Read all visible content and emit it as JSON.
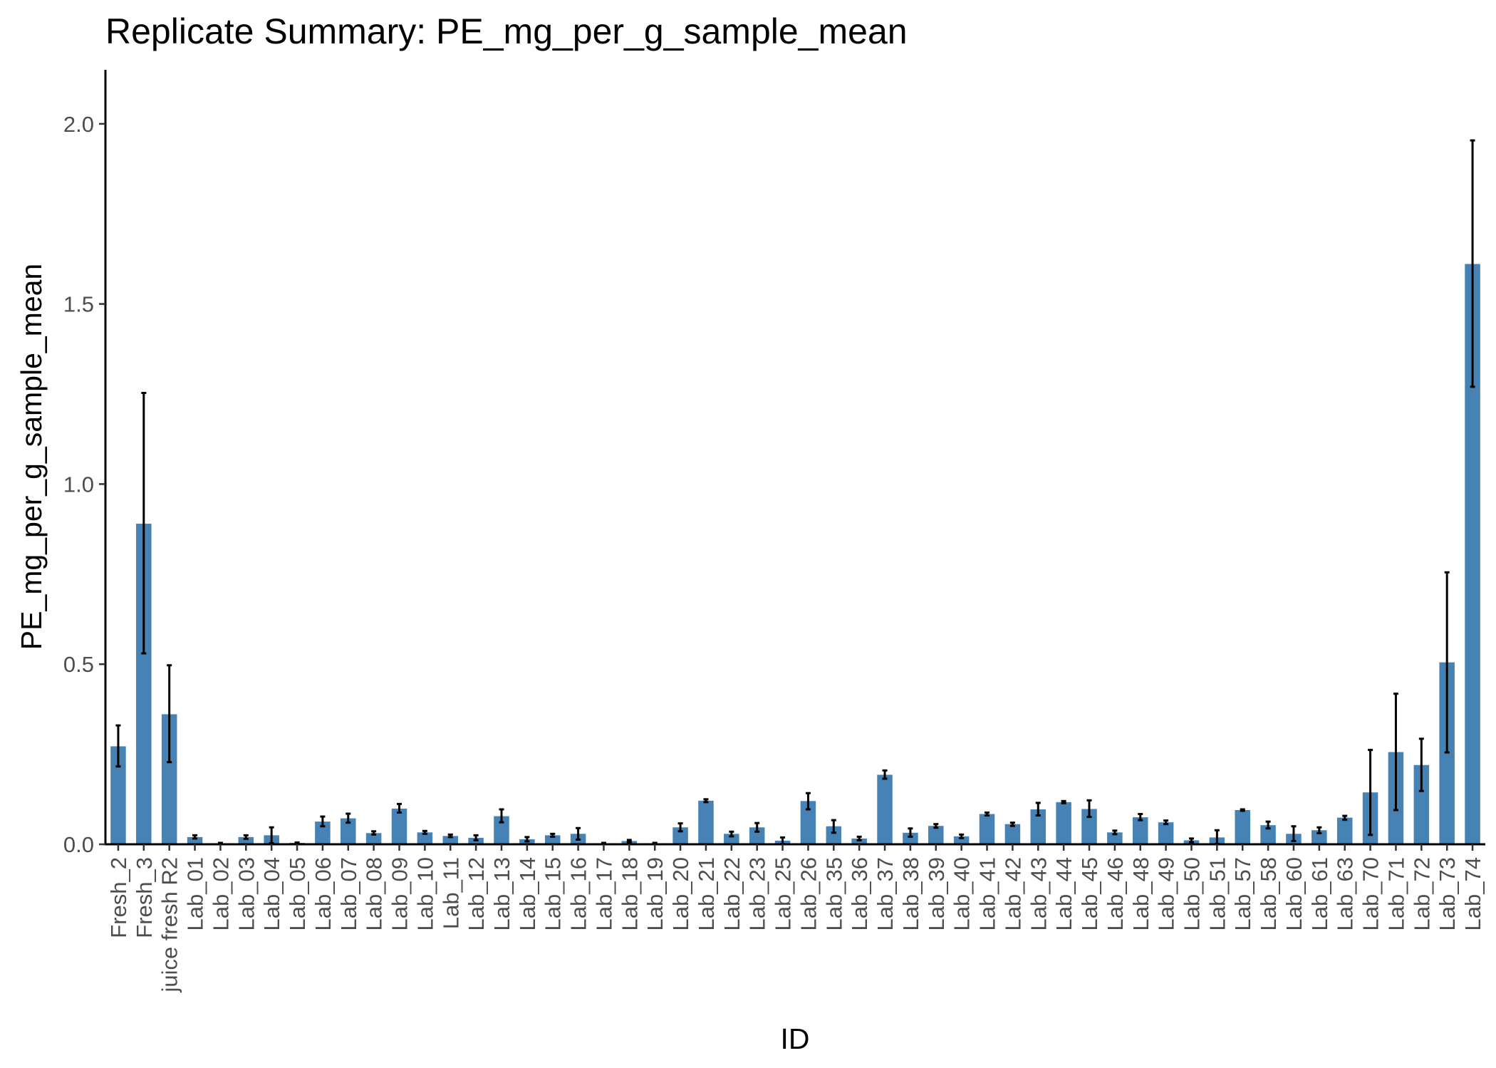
{
  "chart_data": {
    "type": "bar",
    "title": "Replicate Summary: PE_mg_per_g_sample_mean",
    "xlabel": "ID",
    "ylabel": "PE_mg_per_g_sample_mean",
    "ylim": [
      0,
      2.15
    ],
    "yticks": [
      0.0,
      0.5,
      1.0,
      1.5,
      2.0
    ],
    "ytick_labels": [
      "0.0",
      "0.5",
      "1.0",
      "1.5",
      "2.0"
    ],
    "grid": false,
    "legend": "none",
    "bar_color": "#4682b4",
    "error_bar_color": "#000000",
    "categories": [
      "Fresh_2",
      "Fresh_3",
      "juice fresh R2",
      "Lab_01",
      "Lab_02",
      "Lab_03",
      "Lab_04",
      "Lab_05",
      "Lab_06",
      "Lab_07",
      "Lab_08",
      "Lab_09",
      "Lab_10",
      "Lab_11",
      "Lab_12",
      "Lab_13",
      "Lab_14",
      "Lab_15",
      "Lab_16",
      "Lab_17",
      "Lab_18",
      "Lab_19",
      "Lab_20",
      "Lab_21",
      "Lab_22",
      "Lab_23",
      "Lab_25",
      "Lab_26",
      "Lab_35",
      "Lab_36",
      "Lab_37",
      "Lab_38",
      "Lab_39",
      "Lab_40",
      "Lab_41",
      "Lab_42",
      "Lab_43",
      "Lab_44",
      "Lab_45",
      "Lab_46",
      "Lab_48",
      "Lab_49",
      "Lab_50",
      "Lab_51",
      "Lab_57",
      "Lab_58",
      "Lab_60",
      "Lab_61",
      "Lab_63",
      "Lab_70",
      "Lab_71",
      "Lab_72",
      "Lab_73",
      "Lab_74"
    ],
    "values": [
      0.272,
      0.89,
      0.361,
      0.02,
      0.003,
      0.02,
      0.025,
      0.004,
      0.063,
      0.072,
      0.031,
      0.099,
      0.033,
      0.023,
      0.018,
      0.078,
      0.014,
      0.025,
      0.029,
      0.003,
      0.009,
      0.003,
      0.047,
      0.121,
      0.029,
      0.047,
      0.01,
      0.12,
      0.05,
      0.016,
      0.193,
      0.032,
      0.051,
      0.022,
      0.084,
      0.056,
      0.097,
      0.117,
      0.098,
      0.033,
      0.075,
      0.061,
      0.011,
      0.019,
      0.095,
      0.053,
      0.029,
      0.039,
      0.074,
      0.144,
      0.256,
      0.22,
      0.505,
      1.611
    ],
    "error_low": [
      0.216,
      0.53,
      0.228,
      0.016,
      0.002,
      0.015,
      0.003,
      0.003,
      0.05,
      0.06,
      0.027,
      0.088,
      0.029,
      0.02,
      0.011,
      0.061,
      0.008,
      0.021,
      0.013,
      0.002,
      0.006,
      0.002,
      0.036,
      0.117,
      0.022,
      0.035,
      0.001,
      0.097,
      0.032,
      0.011,
      0.182,
      0.021,
      0.046,
      0.017,
      0.08,
      0.051,
      0.08,
      0.114,
      0.076,
      0.028,
      0.067,
      0.056,
      0.006,
      0.001,
      0.093,
      0.044,
      0.009,
      0.031,
      0.068,
      0.026,
      0.095,
      0.148,
      0.255,
      1.27
    ],
    "error_high": [
      0.33,
      1.253,
      0.497,
      0.025,
      0.004,
      0.025,
      0.047,
      0.005,
      0.077,
      0.085,
      0.036,
      0.112,
      0.037,
      0.027,
      0.025,
      0.097,
      0.02,
      0.029,
      0.045,
      0.004,
      0.012,
      0.004,
      0.058,
      0.125,
      0.035,
      0.059,
      0.019,
      0.142,
      0.067,
      0.021,
      0.205,
      0.044,
      0.056,
      0.027,
      0.088,
      0.06,
      0.115,
      0.12,
      0.122,
      0.038,
      0.084,
      0.066,
      0.016,
      0.039,
      0.097,
      0.063,
      0.05,
      0.047,
      0.079,
      0.262,
      0.418,
      0.293,
      0.755,
      1.954
    ]
  }
}
